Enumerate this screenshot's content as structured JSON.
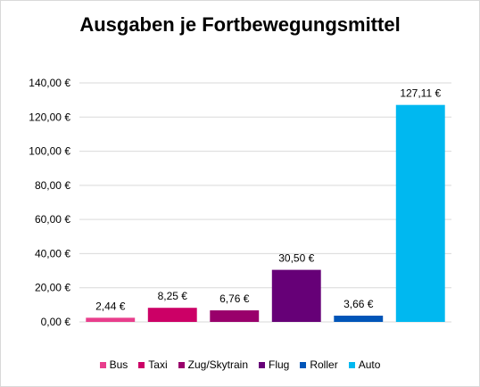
{
  "chart_data": {
    "type": "bar",
    "title": "Ausgaben je Fortbewegungsmittel",
    "categories": [
      "Bus",
      "Taxi",
      "Zug/Skytrain",
      "Flug",
      "Roller",
      "Auto"
    ],
    "values": [
      2.44,
      8.25,
      6.76,
      30.5,
      3.66,
      127.11
    ],
    "value_labels": [
      "2,44 €",
      "8,25 €",
      "6,76 €",
      "30,50 €",
      "3,66 €",
      "127,11 €"
    ],
    "colors": [
      "#e83e8c",
      "#cc0066",
      "#99006b",
      "#660077",
      "#0055b8",
      "#00b8f0"
    ],
    "ylim": [
      0,
      140
    ],
    "yticks": [
      0,
      20,
      40,
      60,
      80,
      100,
      120,
      140
    ],
    "ytick_labels": [
      "0,00 €",
      "20,00 €",
      "40,00 €",
      "60,00 €",
      "80,00 €",
      "100,00 €",
      "120,00 €",
      "140,00 €"
    ],
    "xlabel": "",
    "ylabel": "",
    "grid": true,
    "legend_position": "bottom"
  }
}
